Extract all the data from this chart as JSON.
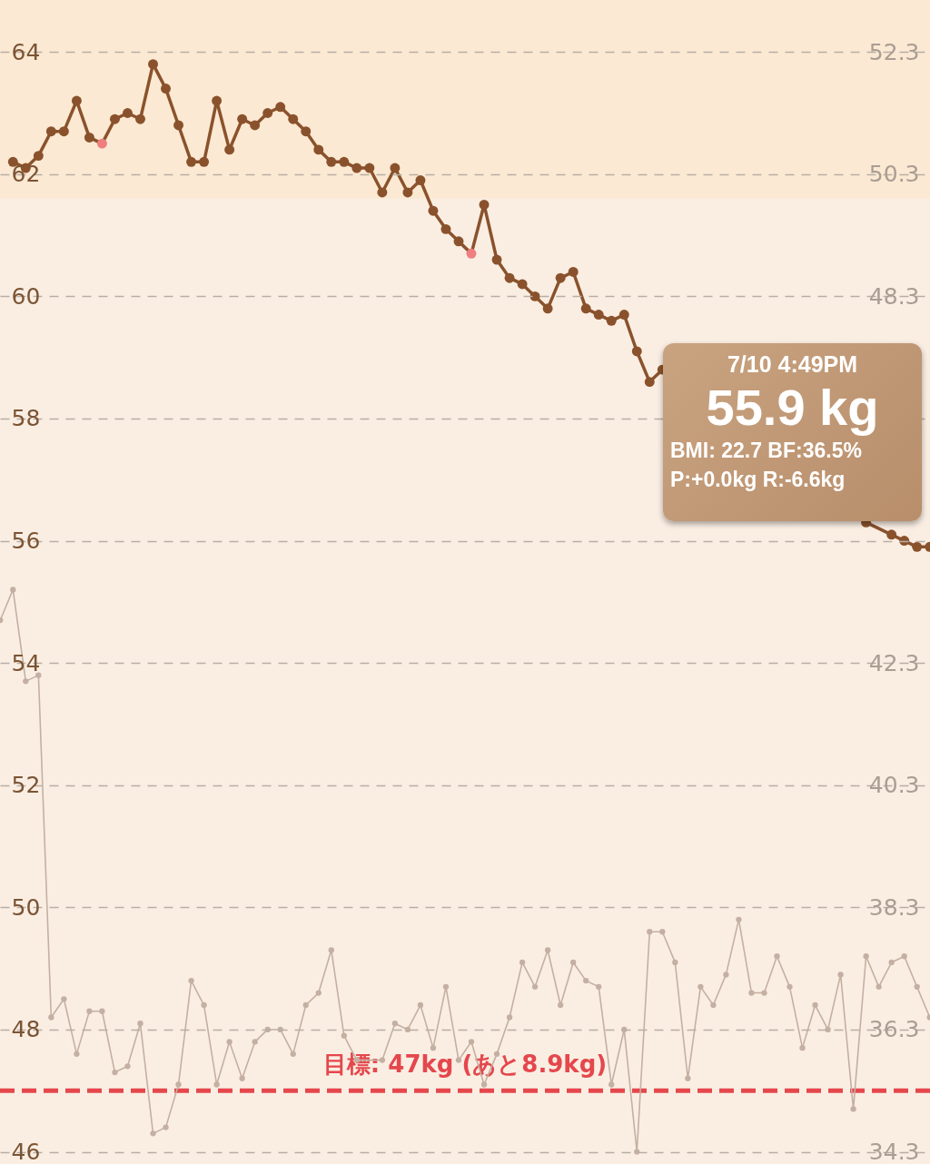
{
  "chart_data": {
    "type": "line",
    "annotations": [
      "7/10 4:49PM",
      "55.9 kg",
      "BMI: 22.7  BF:36.5%",
      "P:+0.0kg  R:-6.6kg"
    ],
    "categories": [
      null,
      null,
      null,
      null,
      null,
      null,
      null,
      null,
      null,
      null,
      null,
      null,
      null,
      null,
      null,
      null,
      null,
      null,
      null,
      null,
      null,
      null,
      null,
      null,
      null,
      null,
      null,
      null,
      null,
      null,
      null,
      null,
      null,
      null,
      null,
      null,
      null,
      null,
      null,
      null,
      null,
      null,
      null,
      null,
      null,
      null,
      null,
      null,
      null,
      null,
      null,
      null,
      null,
      null,
      null,
      null,
      null,
      null,
      null,
      null,
      null,
      null,
      null,
      null,
      null,
      null,
      null,
      null,
      null,
      null,
      null,
      null,
      null,
      null
    ],
    "ylim": [
      45.8,
      64.85
    ],
    "yticks": [
      46,
      48,
      50,
      52,
      54,
      56,
      58,
      60,
      62,
      64
    ],
    "y2lim": [
      34.1,
      53.15
    ],
    "y2ticks": [
      34.3,
      36.3,
      38.3,
      40.3,
      42.3,
      48.3,
      50.3,
      52.3
    ],
    "tick_labels": "y",
    "grid": "y",
    "marker": "circle",
    "bands": [
      {
        "axis": "y",
        "from": 61.6,
        "to": 64.85,
        "color": "#fbe9d3"
      }
    ],
    "ref_lines": [
      {
        "axis": "y",
        "value": 47,
        "label": "目標: 47kg (あと8.9kg)",
        "color": "#e5474c",
        "line_style": "dashed"
      }
    ],
    "series": [
      {
        "color": "#c4b0a2",
        "axis": "y2",
        "values": [
          43.0,
          43.5,
          42.0,
          42.1,
          36.5,
          36.8,
          35.9,
          36.6,
          36.6,
          35.6,
          35.7,
          36.4,
          34.6,
          34.7,
          35.4,
          37.1,
          36.7,
          35.4,
          36.1,
          35.5,
          36.1,
          36.3,
          36.3,
          35.9,
          36.7,
          36.9,
          37.6,
          36.2,
          35.8,
          null,
          35.8,
          36.4,
          36.3,
          36.7,
          36.0,
          37.0,
          35.8,
          36.1,
          35.4,
          35.9,
          36.5,
          37.4,
          37.0,
          37.6,
          36.7,
          37.4,
          37.1,
          37.0,
          35.4,
          36.3,
          34.3,
          37.9,
          37.9,
          37.4,
          35.5,
          37.0,
          36.7,
          37.2,
          38.1,
          36.9,
          36.9,
          37.5,
          37.0,
          36.0,
          36.7,
          36.3,
          37.2,
          35.0,
          37.5,
          37.0,
          37.4,
          37.5,
          37.0,
          36.5
        ]
      },
      {
        "color": "#8a522c",
        "axis": "y",
        "values": [
          null,
          62.2,
          62.1,
          62.3,
          62.7,
          62.7,
          63.2,
          62.6,
          62.5,
          62.9,
          63.0,
          62.9,
          63.8,
          63.4,
          62.8,
          62.2,
          62.2,
          63.2,
          62.4,
          62.9,
          62.8,
          63.0,
          63.1,
          62.9,
          62.7,
          62.4,
          62.2,
          62.2,
          62.1,
          62.1,
          61.7,
          62.1,
          61.7,
          61.9,
          61.4,
          61.1,
          60.9,
          60.7,
          61.5,
          60.6,
          60.3,
          60.2,
          60.0,
          59.8,
          60.3,
          60.4,
          59.8,
          59.7,
          59.6,
          59.7,
          59.1,
          58.6,
          58.8,
          null,
          null,
          null,
          null,
          null,
          null,
          null,
          null,
          null,
          null,
          null,
          null,
          null,
          null,
          null,
          56.3,
          null,
          56.1,
          56.0,
          55.9,
          55.9
        ],
        "colors": [
          "#8a522c",
          "#8a522c",
          "#8a522c",
          "#8a522c",
          "#8a522c",
          "#8a522c",
          "#8a522c",
          "#8a522c",
          "#ef7f7f",
          "#8a522c",
          "#8a522c",
          "#8a522c",
          "#8a522c",
          "#8a522c",
          "#8a522c",
          "#8a522c",
          "#8a522c",
          "#8a522c",
          "#8a522c",
          "#8a522c",
          "#8a522c",
          "#8a522c",
          "#8a522c",
          "#8a522c",
          "#8a522c",
          "#8a522c",
          "#8a522c",
          "#8a522c",
          "#8a522c",
          "#8a522c",
          "#8a522c",
          "#8a522c",
          "#8a522c",
          "#8a522c",
          "#8a522c",
          "#8a522c",
          "#8a522c",
          "#ef7f7f",
          "#8a522c",
          "#8a522c",
          "#8a522c",
          "#8a522c",
          "#8a522c",
          "#8a522c",
          "#8a522c",
          "#8a522c",
          "#8a522c",
          "#8a522c",
          "#8a522c",
          "#8a522c",
          "#8a522c",
          "#8a522c",
          "#8a522c",
          "#8a522c",
          "#8a522c",
          "#8a522c",
          "#8a522c",
          "#8a522c",
          "#8a522c",
          "#8a522c",
          "#8a522c",
          "#8a522c",
          "#8a522c",
          "#8a522c",
          "#8a522c",
          "#8a522c",
          "#8a522c",
          "#8a522c",
          "#8a522c",
          "#8a522c",
          "#8a522c",
          "#8a522c",
          "#8a522c",
          "#8a522c"
        ]
      }
    ]
  }
}
